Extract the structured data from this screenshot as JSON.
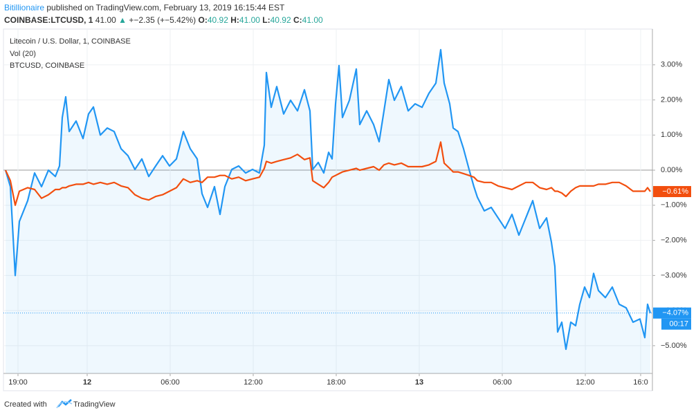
{
  "header": {
    "author": "Bitillionaire",
    "published": "published on TradingView.com, February 13, 2019 16:15:44 EST",
    "symbol": "COINBASE:LTCUSD, 1",
    "last": "41.00",
    "change": "+−2.35 (+−5.42%)",
    "ohlc": [
      {
        "label": "O:",
        "value": "40.92"
      },
      {
        "label": "H:",
        "value": "41.00"
      },
      {
        "label": "L:",
        "value": "40.92"
      },
      {
        "label": "C:",
        "value": "41.00"
      }
    ]
  },
  "footer": {
    "created": "Created with",
    "brand": "TradingView"
  },
  "chart_data": {
    "type": "line",
    "legend": [
      "Litecoin / U.S. Dollar, 1, COINBASE",
      "Vol (20)",
      "BTCUSD, COINBASE"
    ],
    "x": [
      -0.9,
      -0.55,
      -0.2,
      0.1,
      0.7,
      1.2,
      1.7,
      2.2,
      2.7,
      3.0,
      3.2,
      3.45,
      3.7,
      4.2,
      4.7,
      5.1,
      5.45,
      5.95,
      6.45,
      6.95,
      7.45,
      7.95,
      8.45,
      8.95,
      9.45,
      9.95,
      10.45,
      10.95,
      11.45,
      11.95,
      12.45,
      12.95,
      13.3,
      13.7,
      14.2,
      14.6,
      14.95,
      15.45,
      15.95,
      16.45,
      16.95,
      17.45,
      17.8,
      17.95,
      18.3,
      18.7,
      19.2,
      19.7,
      20.2,
      20.7,
      21.1,
      21.3,
      21.7,
      22.1,
      22.45,
      22.7,
      22.95,
      23.2,
      23.45,
      23.95,
      24.45,
      24.7,
      25.2,
      25.7,
      26.1,
      26.45,
      26.8,
      27.2,
      27.7,
      28.2,
      28.7,
      29.2,
      29.7,
      30.2,
      30.55,
      30.8,
      31.2,
      31.45,
      31.8,
      32.2,
      32.6,
      32.95,
      33.2,
      33.7,
      34.2,
      34.7,
      35.2,
      35.7,
      36.2,
      36.7,
      37.2,
      37.7,
      38.2,
      38.55,
      38.8,
      39.0,
      39.3,
      39.6,
      39.95,
      40.3,
      40.6,
      40.95,
      41.3,
      41.6,
      41.95,
      42.45,
      42.95,
      43.45,
      43.95,
      44.45,
      44.95,
      45.3,
      45.5,
      45.7
    ],
    "series": [
      {
        "name": "LTCUSD",
        "color": "#2196f3",
        "area": true,
        "last_label": "−4.07%",
        "countdown": "00:17",
        "values": [
          0,
          -0.47,
          -3.0,
          -1.46,
          -0.87,
          -0.08,
          -0.47,
          0,
          -0.18,
          0.12,
          1.5,
          2.09,
          1.1,
          1.4,
          0.9,
          1.6,
          1.8,
          1.0,
          1.2,
          1.1,
          0.61,
          0.41,
          0.02,
          0.32,
          -0.18,
          0.12,
          0.41,
          0.12,
          0.32,
          1.1,
          0.61,
          0.32,
          -0.67,
          -1.06,
          -0.47,
          -1.26,
          -0.47,
          0.02,
          0.12,
          -0.08,
          0.02,
          -0.08,
          0.71,
          2.78,
          1.79,
          2.38,
          1.6,
          1.99,
          1.69,
          2.29,
          1.69,
          0.02,
          0.22,
          -0.08,
          0.51,
          0.32,
          1.89,
          2.98,
          1.5,
          1.99,
          2.88,
          1.3,
          1.69,
          1.3,
          0.81,
          1.69,
          2.58,
          1.99,
          2.38,
          1.69,
          1.89,
          1.79,
          2.19,
          2.48,
          3.43,
          2.48,
          1.89,
          1.2,
          1.1,
          0.61,
          0.02,
          -0.47,
          -0.77,
          -1.16,
          -1.06,
          -1.36,
          -1.66,
          -1.26,
          -1.85,
          -1.36,
          -0.87,
          -1.66,
          -1.36,
          -2.05,
          -2.74,
          -4.61,
          -4.33,
          -5.1,
          -4.33,
          -4.43,
          -3.82,
          -3.33,
          -3.63,
          -2.94,
          -3.43,
          -3.63,
          -3.33,
          -3.82,
          -3.92,
          -4.33,
          -4.24,
          -4.77,
          -3.82,
          -4.07
        ]
      },
      {
        "name": "BTCUSD",
        "color": "#f24e0e",
        "area": false,
        "last_label": "−0.61%",
        "values": [
          0,
          -0.3,
          -1.0,
          -0.6,
          -0.5,
          -0.55,
          -0.8,
          -0.7,
          -0.55,
          -0.55,
          -0.5,
          -0.5,
          -0.45,
          -0.4,
          -0.4,
          -0.35,
          -0.4,
          -0.35,
          -0.4,
          -0.35,
          -0.45,
          -0.5,
          -0.7,
          -0.8,
          -0.85,
          -0.75,
          -0.7,
          -0.6,
          -0.5,
          -0.25,
          -0.35,
          -0.3,
          -0.35,
          -0.2,
          -0.2,
          -0.15,
          -0.15,
          -0.25,
          -0.2,
          -0.3,
          -0.25,
          -0.2,
          0.05,
          0.25,
          0.2,
          0.25,
          0.3,
          0.35,
          0.45,
          0.3,
          0.35,
          -0.3,
          -0.4,
          -0.5,
          -0.35,
          -0.2,
          -0.15,
          -0.1,
          -0.05,
          0.0,
          0.05,
          0.0,
          0.05,
          0.1,
          0.0,
          0.15,
          0.2,
          0.15,
          0.2,
          0.1,
          0.1,
          0.1,
          0.15,
          0.25,
          0.8,
          0.2,
          0.05,
          -0.05,
          -0.05,
          -0.1,
          -0.15,
          -0.2,
          -0.3,
          -0.35,
          -0.35,
          -0.45,
          -0.5,
          -0.55,
          -0.45,
          -0.35,
          -0.35,
          -0.5,
          -0.55,
          -0.5,
          -0.6,
          -0.6,
          -0.65,
          -0.75,
          -0.6,
          -0.5,
          -0.45,
          -0.45,
          -0.45,
          -0.45,
          -0.4,
          -0.4,
          -0.35,
          -0.35,
          -0.45,
          -0.6,
          -0.6,
          -0.6,
          -0.5,
          -0.61
        ]
      }
    ],
    "xlim": [
      -1.05,
      45.85
    ],
    "xticks": [
      {
        "value": 0,
        "label": "19:00"
      },
      {
        "value": 5,
        "label": "12"
      },
      {
        "value": 11,
        "label": "06:00"
      },
      {
        "value": 17,
        "label": "12:00"
      },
      {
        "value": 23,
        "label": "18:00"
      },
      {
        "value": 29,
        "label": "13"
      },
      {
        "value": 35,
        "label": "06:00"
      },
      {
        "value": 41,
        "label": "12:00"
      },
      {
        "value": 45,
        "label": "16:0"
      }
    ],
    "ylim": [
      -5.79,
      3.98
    ],
    "yticks": [
      {
        "value": 3,
        "label": "3.00%"
      },
      {
        "value": 2,
        "label": "2.00%"
      },
      {
        "value": 1,
        "label": "1.00%"
      },
      {
        "value": 0,
        "label": "0.00%"
      },
      {
        "value": -1,
        "label": "−1.00%"
      },
      {
        "value": -2,
        "label": "−2.00%"
      },
      {
        "value": -3,
        "label": "−3.00%"
      },
      {
        "value": -4,
        "label": "−4.00%"
      },
      {
        "value": -5,
        "label": "−5.00%"
      }
    ],
    "grid": true
  }
}
